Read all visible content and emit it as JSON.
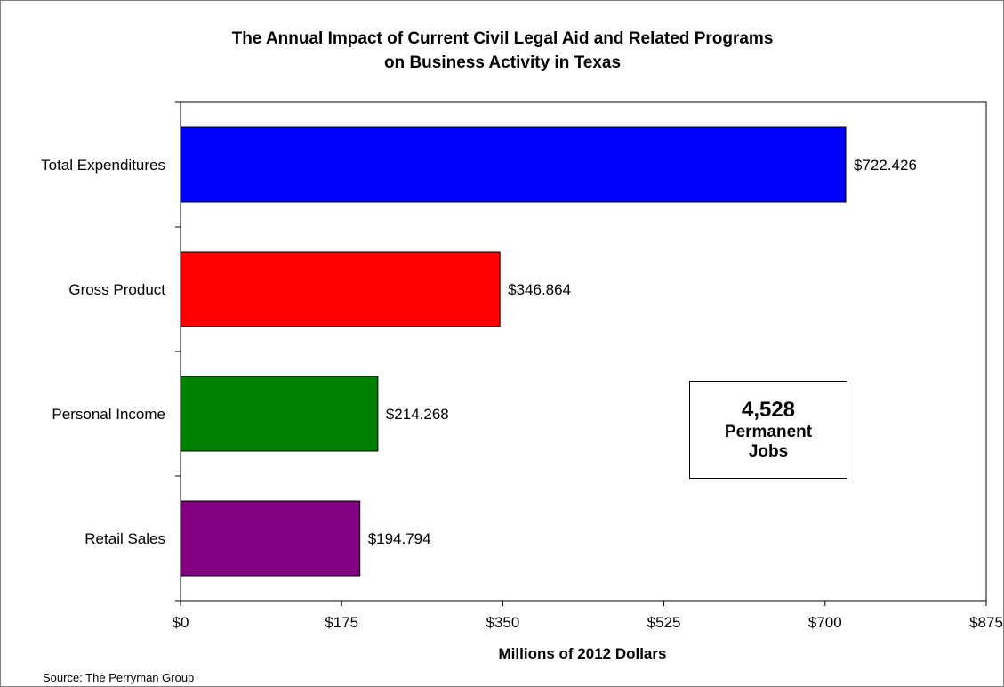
{
  "chart_data": {
    "type": "bar",
    "orientation": "horizontal",
    "title_line1": "The Annual Impact of Current Civil Legal Aid and Related Programs",
    "title_line2": "on Business Activity in Texas",
    "categories": [
      "Total Expenditures",
      "Gross Product",
      "Personal Income",
      "Retail Sales"
    ],
    "values": [
      722.426,
      346.864,
      214.268,
      194.794
    ],
    "value_labels": [
      "$722.426",
      "$346.864",
      "$214.268",
      "$194.794"
    ],
    "colors": [
      "#0000FF",
      "#FF0000",
      "#008000",
      "#800080"
    ],
    "xlabel": "Millions of 2012 Dollars",
    "xlim": [
      0,
      875
    ],
    "xticks": [
      0,
      175,
      350,
      525,
      700,
      875
    ],
    "xtick_labels": [
      "$0",
      "$175",
      "$350",
      "$525",
      "$700",
      "$875"
    ],
    "grid": false,
    "legend": "none",
    "annotation": {
      "number": "4,528",
      "line1": "Permanent",
      "line2": "Jobs"
    },
    "source": "Source: The Perryman Group"
  }
}
